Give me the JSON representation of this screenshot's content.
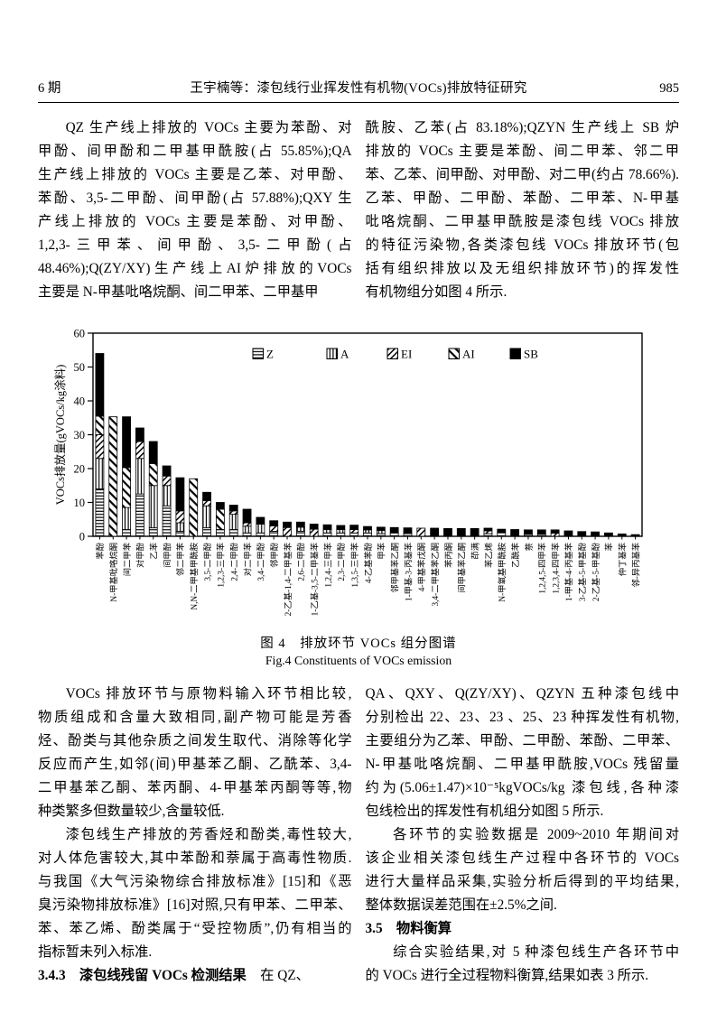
{
  "header": {
    "issue": "6 期",
    "title": "王宇楠等：漆包线行业挥发性有机物(VOCs)排放特征研究",
    "page_number": "985"
  },
  "top_left": [
    {
      "indent": true,
      "lines": [
        "QZ 生产线上排放的 VOCs 主要为苯酚、对",
        "甲酚、间甲酚和二甲基甲酰胺(占 55.85%);QA",
        "生产线上排放的 VOCs 主要是乙苯、对甲酚、",
        "苯酚、3,5-二甲酚、间甲酚(占 57.88%);QXY 生",
        "产线上排放的 VOCs 主要是苯酚、对甲酚、",
        "1,2,3-三甲苯、间甲酚、3,5-二甲酚(占",
        "48.46%);Q(ZY/XY)生产线上AI炉排放的VOCs",
        "主要是 N-甲基吡咯烷酮、间二甲苯、二甲基甲"
      ]
    }
  ],
  "top_right": [
    {
      "indent": false,
      "lines": [
        "酰胺、乙苯(占 83.18%);QZYN 生产线上 SB 炉",
        "排放的 VOCs 主要是苯酚、间二甲苯、邻二甲",
        "苯、乙苯、间甲酚、对甲酚、对二甲(约占 78.66%).",
        "乙苯、甲酚、二甲酚、苯酚、二甲苯、N-甲基",
        "吡咯烷酮、二甲基甲酰胺是漆包线 VOCs 排放",
        "的特征污染物,各类漆包线 VOCs 排放环节(包",
        "括有组织排放以及无组织排放环节)的挥发性",
        "有机物组分如图 4 所示."
      ]
    }
  ],
  "figure": {
    "caption_zh": "图 4　排放环节 VOCs 组分图谱",
    "caption_en": "Fig.4    Constituents of VOCs emission"
  },
  "chart_data": {
    "type": "bar",
    "stacked": true,
    "ylabel": "VOCs排放量(gVOCs/kg涂料)",
    "ylim": [
      0,
      60
    ],
    "yticks": [
      0,
      10,
      20,
      30,
      40,
      50,
      60
    ],
    "grid": false,
    "legend_position": "top-inside",
    "categories": [
      "苯酚",
      "N-甲基吡咯烷酮",
      "间二甲苯",
      "对甲酚",
      "乙苯",
      "间甲酚",
      "邻二甲苯",
      "N,N-二甲基甲酰胺",
      "3,5-二甲酚",
      "1,2,3-三甲苯",
      "2,4-二甲酚",
      "对二甲苯",
      "3,4-二甲酚",
      "邻甲酚",
      "2-乙基-1,4-二甲基苯",
      "2,6-二甲酚",
      "1-乙基-3,5-二甲基苯",
      "1,2,4-三甲苯",
      "2,3-二甲酚",
      "1,3,5-三甲苯",
      "4-乙基苯酚",
      "甲苯",
      "邻甲基苯乙酮",
      "1-甲基-3-丙基苯",
      "4-甲基苯戊酮",
      "3,4-二甲基苯乙酮",
      "苯丙酮",
      "间甲基苯乙酮",
      "茚满",
      "苯乙烯",
      "N-甲氧基甲酰胺",
      "乙酰苯",
      "萘",
      "1,2,4,5-四甲苯",
      "1,2,3,4-四甲苯",
      "1-甲基-4-丙基苯",
      "3-乙基-5-甲基酚",
      "2-乙基-5-甲基酚",
      "苯",
      "仲丁基苯",
      "邻-异丙基苯"
    ],
    "series": [
      {
        "name": "Z",
        "pattern": "horizontal-lines",
        "values": [
          14,
          0,
          2,
          12.5,
          2.5,
          9,
          1.5,
          0,
          2.5,
          2,
          2,
          1,
          1,
          1.5,
          0,
          1.5,
          0,
          1,
          1,
          1,
          1,
          0.8,
          1,
          0.8,
          0,
          0,
          0,
          0,
          0,
          0.8,
          1.2,
          0,
          0.6,
          0.6,
          0,
          0,
          0,
          0,
          0,
          0,
          0
        ]
      },
      {
        "name": "A",
        "pattern": "vertical-lines",
        "values": [
          9,
          0,
          6.5,
          10.5,
          12.5,
          6,
          2.5,
          0,
          6.5,
          0,
          4.5,
          2,
          2.6,
          0,
          0,
          1.2,
          0,
          1,
          1,
          0,
          0.9,
          0.9,
          0,
          0,
          0,
          0,
          0,
          0,
          0,
          0,
          0,
          0,
          0,
          0,
          0,
          0,
          0,
          0,
          0,
          0,
          0
        ]
      },
      {
        "name": "EI",
        "pattern": "diagonal-forward",
        "values": [
          7,
          0,
          0,
          5,
          0,
          2.8,
          3.5,
          0,
          1.5,
          0,
          1,
          1,
          0,
          1.6,
          2.6,
          0,
          2.1,
          0,
          0,
          1,
          0,
          0,
          0,
          0,
          2.4,
          0,
          0,
          0,
          0,
          0.8,
          0,
          0,
          0,
          0,
          0.9,
          0,
          0,
          0,
          0,
          0,
          0
        ]
      },
      {
        "name": "AI",
        "pattern": "diagonal-back",
        "values": [
          5.5,
          35.3,
          11.8,
          0,
          6.5,
          0,
          0,
          17,
          0,
          6,
          0,
          0,
          0,
          0,
          0,
          0,
          0,
          0,
          0,
          0,
          0,
          0,
          0,
          0,
          0,
          0,
          0,
          0,
          0,
          0,
          0,
          0,
          0,
          0,
          0,
          0,
          0,
          0,
          0,
          0,
          0
        ]
      },
      {
        "name": "SB",
        "pattern": "solid-black",
        "values": [
          18.5,
          0,
          15,
          4,
          6.5,
          3,
          9.8,
          0,
          2.5,
          2,
          1.7,
          4,
          2,
          1.5,
          1.6,
          1.5,
          1.5,
          1.4,
          1.2,
          1.3,
          1,
          1,
          1.6,
          1.7,
          0,
          2.4,
          2.3,
          2.3,
          2.3,
          0.8,
          0.9,
          2,
          1.3,
          1.3,
          1,
          1.6,
          1.4,
          1.3,
          1,
          0.7,
          0.5
        ]
      }
    ]
  },
  "bottom_left": [
    {
      "indent": true,
      "lines": [
        "VOCs 排放环节与原物料输入环节相比较,",
        "物质组成和含量大致相同,副产物可能是芳香",
        "烃、酚类与其他杂质之间发生取代、消除等化学",
        "反应而产生,如邻(间)甲基苯乙酮、乙酰苯、3,4-",
        "二甲基苯乙酮、苯丙酮、4-甲基苯丙酮等等,物",
        "种类繁多但数量较少,含量较低."
      ]
    },
    {
      "indent": true,
      "lines": [
        "漆包线生产排放的芳香烃和酚类,毒性较大,",
        "对人体危害较大,其中苯酚和萘属于高毒性物质.",
        "与我国《大气污染物综合排放标准》[15]和《恶",
        "臭污染物排放标准》[16]对照,只有甲苯、二甲苯、",
        "苯、苯乙烯、酚类属于“受控物质”,仍有相当的",
        "指标暂未列入标准."
      ]
    },
    {
      "indent": false,
      "lines": [
        {
          "parts": [
            {
              "text": "3.4.3　漆包线残留 VOCs 检测结果",
              "bold": true
            },
            {
              "text": "　在 QZ、",
              "bold": false
            }
          ]
        }
      ]
    }
  ],
  "bottom_right": [
    {
      "indent": false,
      "lines": [
        "QA、QXY、Q(ZY/XY)、QZYN 五种漆包线中",
        "分别检出 22、23、23 、25、23 种挥发性有机物,",
        "主要组分为乙苯、甲酚、二甲酚、苯酚、二甲苯、",
        "N-甲基吡咯烷酮、二甲基甲酰胺,VOCs 残留量",
        "约为(5.06±1.47)×10⁻⁵kgVOCs/kg 漆包线,各种漆",
        "包线检出的挥发性有机组分如图 5 所示."
      ]
    },
    {
      "indent": true,
      "lines": [
        "各环节的实验数据是 2009~2010 年期间对",
        "该企业相关漆包线生产过程中各环节的 VOCs",
        "进行大量样品采集,实验分析后得到的平均结果,",
        "整体数据误差范围在±2.5%之间."
      ]
    },
    {
      "indent": false,
      "lines": [
        {
          "parts": [
            {
              "text": "3.5　物料衡算",
              "bold": true
            }
          ]
        }
      ]
    },
    {
      "indent": true,
      "lines": [
        "综合实验结果,对 5 种漆包线生产各环节中",
        "的 VOCs 进行全过程物料衡算,结果如表 3 所示."
      ]
    }
  ]
}
